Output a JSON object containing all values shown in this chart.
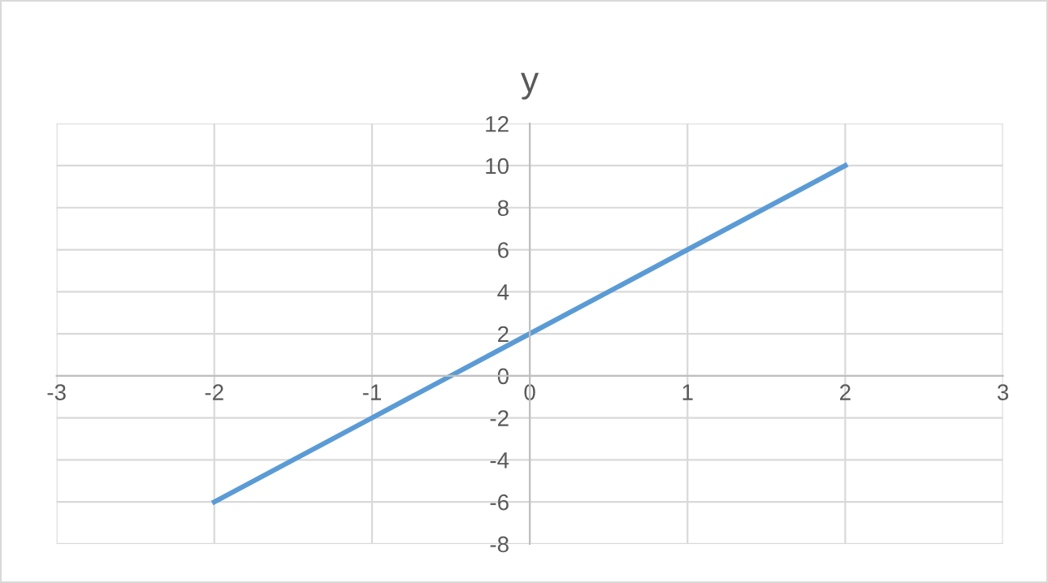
{
  "chart_data": {
    "type": "line",
    "title": "y",
    "x": [
      -2,
      -1,
      0,
      1,
      2
    ],
    "series": [
      {
        "color": "#5b9bd5",
        "values": [
          -6,
          -2,
          2,
          6,
          10
        ]
      }
    ],
    "xlim": [
      -3,
      3
    ],
    "xticks": [
      -3,
      -2,
      -1,
      0,
      1,
      2,
      3
    ],
    "ylim": [
      -8,
      12
    ],
    "yticks": [
      -8,
      -6,
      -4,
      -2,
      0,
      2,
      4,
      6,
      8,
      10,
      12
    ],
    "grid": true,
    "marker": "none",
    "line_style": "solid",
    "legend": false
  }
}
